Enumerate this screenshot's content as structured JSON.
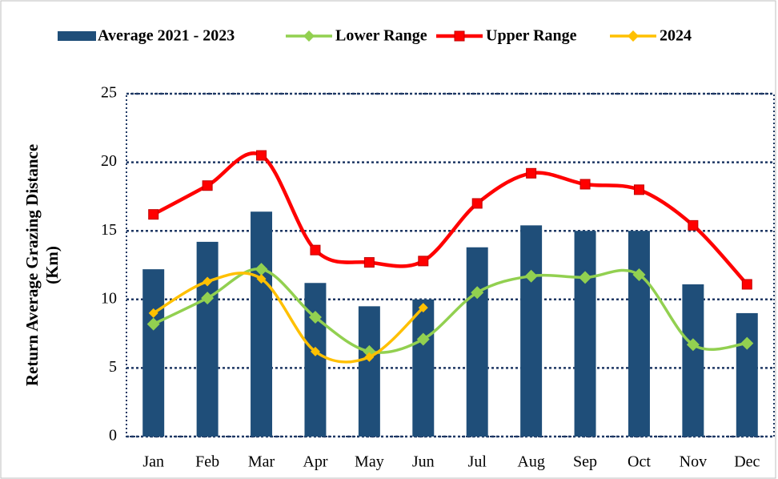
{
  "chart_data": {
    "type": "bar_line",
    "y_label": [
      "Return Average Grazing Distance",
      "(Km)"
    ],
    "categories": [
      "Jan",
      "Feb",
      "Mar",
      "Apr",
      "May",
      "Jun",
      "Jul",
      "Aug",
      "Sep",
      "Oct",
      "Nov",
      "Dec"
    ],
    "series": [
      {
        "name": "Average 2021 - 2023",
        "type": "bar",
        "color": "#1f4e79",
        "values": [
          12.2,
          14.2,
          16.4,
          11.2,
          9.5,
          10.0,
          13.8,
          15.4,
          15.0,
          15.0,
          11.1,
          9.0
        ]
      },
      {
        "name": "Lower Range",
        "type": "line",
        "marker": "diamond",
        "color": "#92d050",
        "values": [
          8.2,
          10.1,
          12.2,
          8.7,
          6.2,
          7.1,
          10.5,
          11.7,
          11.6,
          11.8,
          6.7,
          6.8
        ]
      },
      {
        "name": "Upper Range",
        "type": "line",
        "marker": "square",
        "color": "#ff0000",
        "values": [
          16.2,
          18.3,
          20.5,
          13.6,
          12.7,
          12.8,
          17.0,
          19.2,
          18.4,
          18.0,
          15.4,
          11.1
        ]
      },
      {
        "name": "2024",
        "type": "line",
        "marker": "diamond",
        "color": "#ffc000",
        "values": [
          9.0,
          11.3,
          11.5,
          6.2,
          5.8,
          9.4,
          null,
          null,
          null,
          null,
          null,
          null
        ]
      }
    ],
    "ylim": [
      0,
      25
    ],
    "yticks": [
      0,
      5,
      10,
      15,
      20,
      25
    ],
    "grid": true,
    "legend": "top"
  }
}
